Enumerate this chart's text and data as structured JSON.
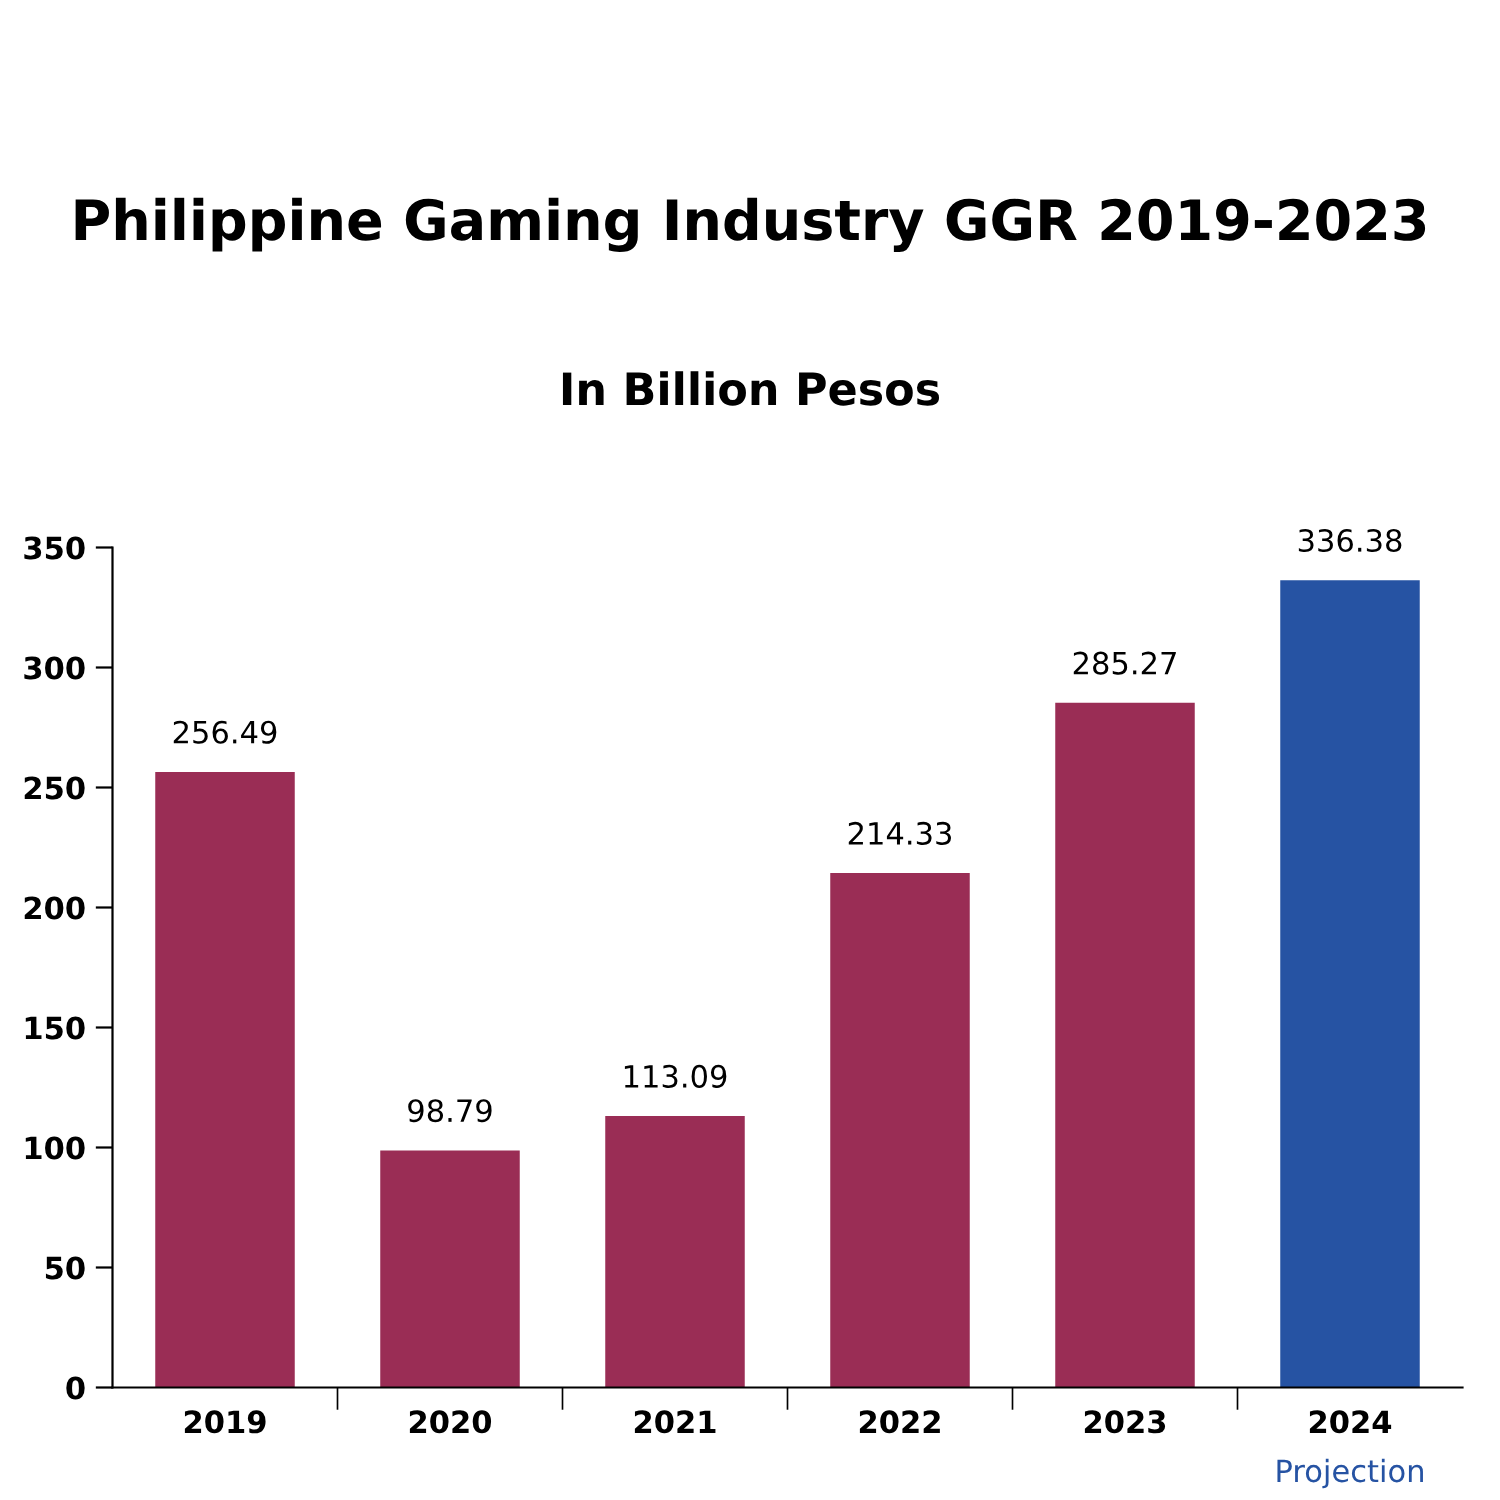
{
  "chart_data": {
    "type": "bar",
    "title": "Philippine Gaming Industry GGR 2019-2023",
    "subtitle": "In Billion Pesos",
    "categories": [
      "2019",
      "2020",
      "2021",
      "2022",
      "2023",
      "2024"
    ],
    "values": [
      256.49,
      98.79,
      113.09,
      214.33,
      285.27,
      336.38
    ],
    "colors": [
      "#9a2d55",
      "#9a2d55",
      "#9a2d55",
      "#9a2d55",
      "#9a2d55",
      "#2653a3"
    ],
    "annotations": [
      "Projection"
    ],
    "ylim": [
      0,
      350
    ],
    "yticks": [
      0,
      50,
      100,
      150,
      200,
      250,
      300,
      350
    ],
    "data_labels": true,
    "grid": false,
    "legend": false
  }
}
